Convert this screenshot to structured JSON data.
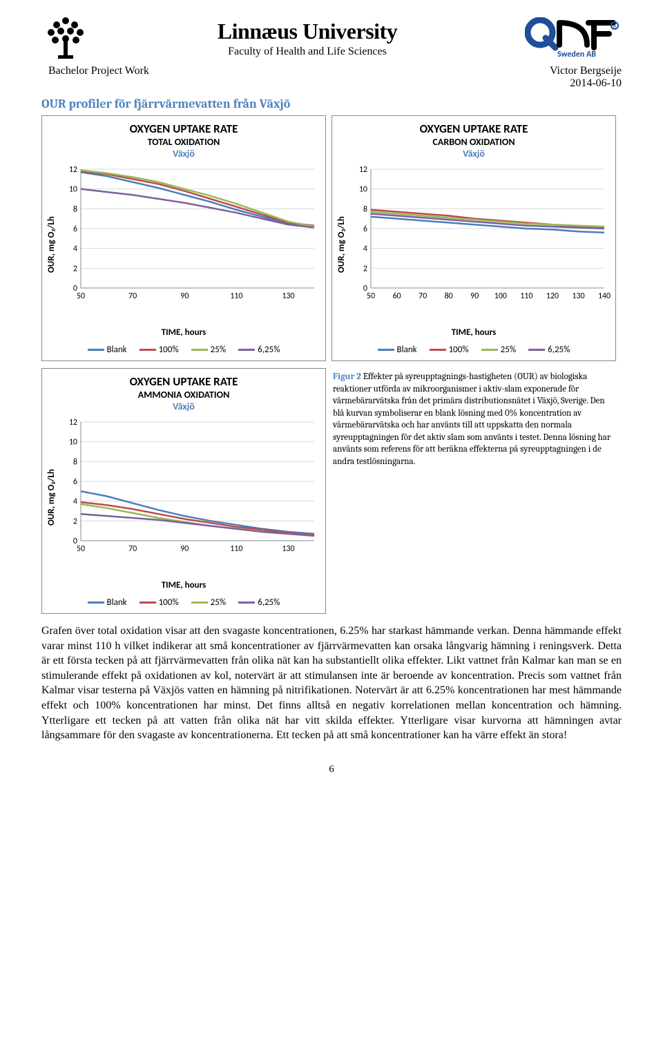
{
  "header": {
    "university": "Linnæus University",
    "faculty": "Faculty of Health and Life Sciences",
    "project": "Bachelor Project Work",
    "author": "Victor Bergseije",
    "date": "2014-06-10"
  },
  "section_title": "OUR profiler för fjärrvärmevatten från Växjö",
  "pageNumber": "6",
  "colors": {
    "blank": "#4a7ebb",
    "c100": "#be4b48",
    "c25": "#98b954",
    "c625": "#7d60a0",
    "axis": "#888888",
    "grid": "#d9d9d9",
    "accent": "#4f81bd"
  },
  "legend": {
    "blank": "Blank",
    "c100": "100%",
    "c25": "25%",
    "c625": "6,25%"
  },
  "axis_labels": {
    "y": "OUR, mg O₂/Lh",
    "x": "TIME, hours"
  },
  "charts": {
    "total": {
      "title_main": "OXYGEN UPTAKE RATE",
      "title_sub": "TOTAL OXIDATION",
      "city": "Växjö",
      "ylim": [
        0,
        12
      ],
      "ytick_step": 2,
      "xlim": [
        50,
        140
      ],
      "xticks": [
        50,
        70,
        90,
        110,
        130
      ],
      "series": {
        "blank": [
          [
            50,
            11.7
          ],
          [
            60,
            11.3
          ],
          [
            70,
            10.7
          ],
          [
            80,
            10.1
          ],
          [
            90,
            9.4
          ],
          [
            100,
            8.7
          ],
          [
            110,
            7.9
          ],
          [
            120,
            7.2
          ],
          [
            130,
            6.5
          ],
          [
            140,
            6.2
          ]
        ],
        "c100": [
          [
            50,
            11.8
          ],
          [
            60,
            11.5
          ],
          [
            70,
            11.0
          ],
          [
            80,
            10.5
          ],
          [
            90,
            9.8
          ],
          [
            100,
            9.0
          ],
          [
            110,
            8.2
          ],
          [
            120,
            7.4
          ],
          [
            130,
            6.6
          ],
          [
            140,
            6.3
          ]
        ],
        "c25": [
          [
            50,
            11.9
          ],
          [
            60,
            11.6
          ],
          [
            70,
            11.2
          ],
          [
            80,
            10.7
          ],
          [
            90,
            10.0
          ],
          [
            100,
            9.3
          ],
          [
            110,
            8.5
          ],
          [
            120,
            7.6
          ],
          [
            130,
            6.7
          ],
          [
            140,
            6.2
          ]
        ],
        "c625": [
          [
            50,
            10.0
          ],
          [
            60,
            9.7
          ],
          [
            70,
            9.4
          ],
          [
            80,
            9.0
          ],
          [
            90,
            8.6
          ],
          [
            100,
            8.1
          ],
          [
            110,
            7.6
          ],
          [
            120,
            7.0
          ],
          [
            130,
            6.4
          ],
          [
            140,
            6.1
          ]
        ]
      }
    },
    "carbon": {
      "title_main": "OXYGEN UPTAKE RATE",
      "title_sub": "CARBON OXIDATION",
      "city": "Växjö",
      "ylim": [
        0,
        12
      ],
      "ytick_step": 2,
      "xlim": [
        50,
        140
      ],
      "xticks": [
        50,
        60,
        70,
        80,
        90,
        100,
        110,
        120,
        130,
        140
      ],
      "series": {
        "blank": [
          [
            50,
            7.2
          ],
          [
            60,
            7.0
          ],
          [
            70,
            6.8
          ],
          [
            80,
            6.6
          ],
          [
            90,
            6.4
          ],
          [
            100,
            6.2
          ],
          [
            110,
            6.0
          ],
          [
            120,
            5.9
          ],
          [
            130,
            5.7
          ],
          [
            140,
            5.6
          ]
        ],
        "c100": [
          [
            50,
            7.9
          ],
          [
            60,
            7.7
          ],
          [
            70,
            7.5
          ],
          [
            80,
            7.3
          ],
          [
            90,
            7.0
          ],
          [
            100,
            6.8
          ],
          [
            110,
            6.6
          ],
          [
            120,
            6.4
          ],
          [
            130,
            6.2
          ],
          [
            140,
            6.1
          ]
        ],
        "c25": [
          [
            50,
            7.7
          ],
          [
            60,
            7.5
          ],
          [
            70,
            7.3
          ],
          [
            80,
            7.1
          ],
          [
            90,
            6.9
          ],
          [
            100,
            6.7
          ],
          [
            110,
            6.5
          ],
          [
            120,
            6.4
          ],
          [
            130,
            6.3
          ],
          [
            140,
            6.2
          ]
        ],
        "c625": [
          [
            50,
            7.5
          ],
          [
            60,
            7.3
          ],
          [
            70,
            7.1
          ],
          [
            80,
            6.9
          ],
          [
            90,
            6.7
          ],
          [
            100,
            6.5
          ],
          [
            110,
            6.3
          ],
          [
            120,
            6.2
          ],
          [
            130,
            6.1
          ],
          [
            140,
            6.0
          ]
        ]
      }
    },
    "ammonia": {
      "title_main": "OXYGEN UPTAKE RATE",
      "title_sub": "AMMONIA OXIDATION",
      "city": "Växjö",
      "ylim": [
        0,
        12
      ],
      "ytick_step": 2,
      "xlim": [
        50,
        140
      ],
      "xticks": [
        50,
        70,
        90,
        110,
        130
      ],
      "series": {
        "blank": [
          [
            50,
            5.0
          ],
          [
            60,
            4.5
          ],
          [
            70,
            3.8
          ],
          [
            80,
            3.1
          ],
          [
            90,
            2.5
          ],
          [
            100,
            2.0
          ],
          [
            110,
            1.6
          ],
          [
            120,
            1.2
          ],
          [
            130,
            0.9
          ],
          [
            140,
            0.7
          ]
        ],
        "c100": [
          [
            50,
            3.9
          ],
          [
            60,
            3.6
          ],
          [
            70,
            3.2
          ],
          [
            80,
            2.7
          ],
          [
            90,
            2.2
          ],
          [
            100,
            1.8
          ],
          [
            110,
            1.4
          ],
          [
            120,
            1.1
          ],
          [
            130,
            0.8
          ],
          [
            140,
            0.6
          ]
        ],
        "c25": [
          [
            50,
            3.7
          ],
          [
            60,
            3.3
          ],
          [
            70,
            2.8
          ],
          [
            80,
            2.3
          ],
          [
            90,
            1.9
          ],
          [
            100,
            1.5
          ],
          [
            110,
            1.2
          ],
          [
            120,
            0.9
          ],
          [
            130,
            0.7
          ],
          [
            140,
            0.5
          ]
        ],
        "c625": [
          [
            50,
            2.7
          ],
          [
            60,
            2.5
          ],
          [
            70,
            2.3
          ],
          [
            80,
            2.1
          ],
          [
            90,
            1.8
          ],
          [
            100,
            1.5
          ],
          [
            110,
            1.2
          ],
          [
            120,
            0.9
          ],
          [
            130,
            0.7
          ],
          [
            140,
            0.5
          ]
        ]
      }
    }
  },
  "caption": {
    "label": "Figur 2",
    "text": " Effekter på syreupptagnings-hastigheten (OUR) av biologiska reaktioner utförda av mikroorganismer i aktiv-slam exponerade för värmebärarvätska från det primära distributionsnätet i Växjö, Sverige. Den blå kurvan symboliserar en blank lösning med 0% koncentration av värmebärarvätska och har använts till att uppskatta den normala syreupptagningen för det aktiv slam som använts i testet. Denna lösning har använts som referens för att beräkna effekterna på syreupptagningen i de andra testlösningarna."
  },
  "body": "Grafen över total oxidation visar att den svagaste koncentrationen, 6.25% har starkast hämmande verkan. Denna hämmande effekt varar minst 110 h vilket indikerar att små koncentrationer av fjärrvärmevatten kan orsaka långvarig hämning i reningsverk. Detta är ett första tecken på att fjärrvärmevatten från olika nät kan ha substantiellt olika effekter. Likt vattnet från Kalmar kan man se en stimulerande effekt på oxidationen av kol, notervärt är att stimulansen inte är beroende av koncentration. Precis som vattnet från Kalmar visar testerna på Växjös vatten en hämning på nitrifikationen. Notervärt är att 6.25% koncentrationen har mest hämmande effekt och 100% koncentrationen har minst. Det finns alltså en negativ korrelationen mellan koncentration och hämning. Ytterligare ett tecken på att vatten från olika nät har vitt skilda effekter. Ytterligare visar kurvorna att hämningen avtar långsammare för den svagaste av koncentrationerna. Ett tecken på att små koncentrationer kan ha värre effekt än stora!"
}
